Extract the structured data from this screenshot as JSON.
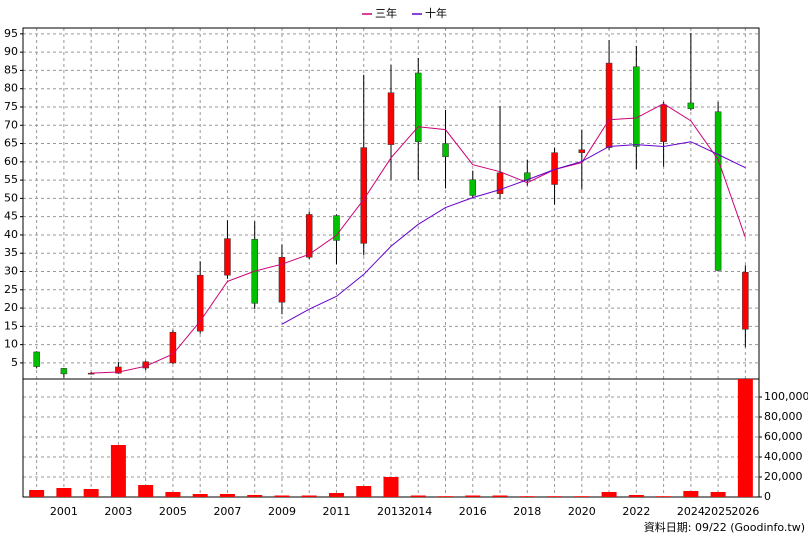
{
  "chart_data": {
    "type": "candlestick",
    "categories": [
      null,
      "2001",
      null,
      "2003",
      null,
      "2005",
      null,
      "2007",
      null,
      "2009",
      null,
      "2011",
      null,
      "2013",
      "2014",
      null,
      "2016",
      null,
      "2018",
      null,
      "2020",
      null,
      "2022",
      null,
      "2024",
      "2025",
      "2026"
    ],
    "candles": {
      "open": [
        8,
        3.5,
        2,
        2.2,
        3.6,
        5,
        13.7,
        29,
        38.8,
        21.6,
        33.9,
        45.3,
        37.7,
        64.7,
        84.3,
        65,
        55.1,
        51.3,
        57,
        53.8,
        62.5,
        63.9,
        86,
        65.5,
        76.1,
        73.7,
        14.2
      ],
      "high": [
        8.2,
        3.6,
        2.5,
        5.3,
        5.6,
        14,
        32.8,
        44,
        43.7,
        37.4,
        46.4,
        45.6,
        83.8,
        86.5,
        88.4,
        74.2,
        57.6,
        75.3,
        60.6,
        63.9,
        68.8,
        93.3,
        91.7,
        76.4,
        95.2,
        76.4,
        31.7
      ],
      "low": [
        3.5,
        1,
        1.8,
        2,
        3,
        4.7,
        13,
        28,
        19.7,
        18.3,
        33.3,
        32,
        34.4,
        55.1,
        55,
        52.7,
        50.2,
        49.7,
        53.5,
        48.3,
        52.4,
        63.3,
        57.9,
        58.7,
        74,
        30,
        9.3
      ],
      "close": [
        4,
        2,
        2.2,
        3.9,
        5.3,
        13.4,
        29,
        39,
        21.3,
        33.9,
        45.6,
        38.5,
        63.9,
        78.9,
        65.5,
        61.4,
        50.8,
        57,
        54.9,
        62.5,
        63.3,
        87,
        64.2,
        75.6,
        74.5,
        30.3,
        29.8
      ],
      "up_color": "#ff0000",
      "down_color": "#00c000"
    },
    "series": [
      {
        "name": "三年",
        "color": "#cc0077",
        "values": [
          null,
          null,
          2.2,
          2.5,
          4.1,
          7.4,
          16.4,
          27.3,
          30.1,
          32,
          34.7,
          39.9,
          49.7,
          61.1,
          69.6,
          68.8,
          59.2,
          57.3,
          54.3,
          57.9,
          59.8,
          71.5,
          72,
          75.9,
          71.2,
          60.6,
          39.3
        ]
      },
      {
        "name": "十年",
        "color": "#6600cc",
        "values": [
          null,
          null,
          null,
          null,
          null,
          null,
          null,
          null,
          null,
          15.6,
          19.7,
          23.2,
          29.2,
          36.9,
          42.9,
          47.5,
          50.2,
          52.4,
          55.1,
          57.9,
          60.1,
          64.2,
          64.7,
          64.2,
          65.5,
          62,
          58.4
        ]
      }
    ],
    "ylim": [
      0.6,
      96.6
    ],
    "yticks": [
      5,
      10,
      15,
      20,
      25,
      30,
      35,
      40,
      45,
      50,
      55,
      60,
      65,
      70,
      75,
      80,
      85,
      90,
      95
    ],
    "volume": {
      "color": "#ff0000",
      "values": [
        7000,
        9000,
        8000,
        52000,
        12000,
        5000,
        3000,
        3000,
        2000,
        1500,
        1500,
        4000,
        11000,
        20000,
        1500,
        800,
        1500,
        1500,
        800,
        800,
        800,
        5000,
        2000,
        800,
        6000,
        5000,
        118000
      ],
      "ylim": [
        0,
        118000
      ],
      "yticks": [
        0,
        {
          "value": 20000,
          "label": "20,000"
        },
        {
          "value": 40000,
          "label": "40,000"
        },
        {
          "value": 60000,
          "label": "60,000"
        },
        {
          "value": 80000,
          "label": "80,000"
        },
        {
          "value": 100000,
          "label": "100,000"
        }
      ]
    },
    "grid": true,
    "footnote": "資料日期: 09/22 (Goodinfo.tw)"
  }
}
